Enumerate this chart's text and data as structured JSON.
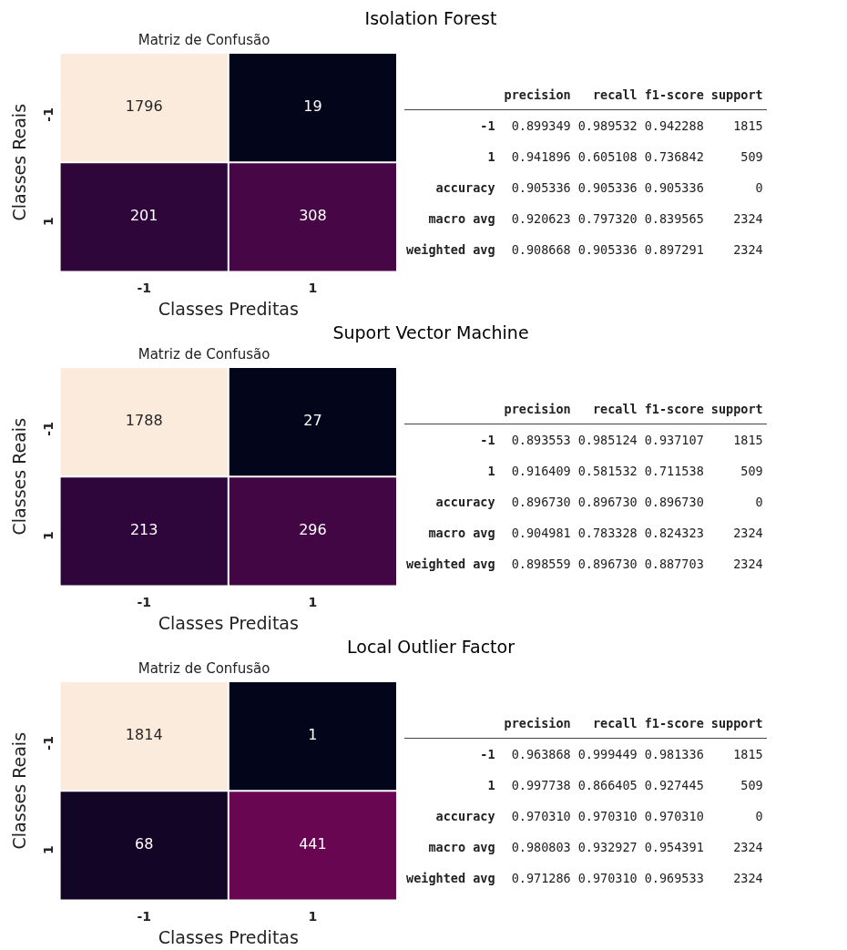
{
  "chart_data": [
    {
      "type": "heatmap",
      "title": "Isolation Forest",
      "subtitle": "Matriz de Confusão",
      "xlabel": "Classes Preditas",
      "ylabel": "Classes Reais",
      "categories": [
        "-1",
        "1"
      ],
      "y_categories": [
        "-1",
        "1"
      ],
      "cells": [
        [
          1796,
          19
        ],
        [
          201,
          308
        ]
      ],
      "data_labels": true
    },
    {
      "type": "other",
      "categories": [
        "precision",
        "recall",
        "f1-score",
        "support"
      ],
      "y_categories": [
        "-1",
        "1",
        "accuracy",
        "macro avg",
        "weighted avg"
      ],
      "cell_labels": [
        [
          "0.899349",
          "0.989532",
          "0.942288",
          "1815"
        ],
        [
          "0.941896",
          "0.605108",
          "0.736842",
          "509"
        ],
        [
          "0.905336",
          "0.905336",
          "0.905336",
          "0"
        ],
        [
          "0.920623",
          "0.797320",
          "0.839565",
          "2324"
        ],
        [
          "0.908668",
          "0.905336",
          "0.897291",
          "2324"
        ]
      ]
    },
    {
      "type": "heatmap",
      "title": "Suport Vector Machine",
      "subtitle": "Matriz de Confusão",
      "xlabel": "Classes Preditas",
      "ylabel": "Classes Reais",
      "categories": [
        "-1",
        "1"
      ],
      "y_categories": [
        "-1",
        "1"
      ],
      "cells": [
        [
          1788,
          27
        ],
        [
          213,
          296
        ]
      ],
      "data_labels": true
    },
    {
      "type": "other",
      "categories": [
        "precision",
        "recall",
        "f1-score",
        "support"
      ],
      "y_categories": [
        "-1",
        "1",
        "accuracy",
        "macro avg",
        "weighted avg"
      ],
      "cell_labels": [
        [
          "0.893553",
          "0.985124",
          "0.937107",
          "1815"
        ],
        [
          "0.916409",
          "0.581532",
          "0.711538",
          "509"
        ],
        [
          "0.896730",
          "0.896730",
          "0.896730",
          "0"
        ],
        [
          "0.904981",
          "0.783328",
          "0.824323",
          "2324"
        ],
        [
          "0.898559",
          "0.896730",
          "0.887703",
          "2324"
        ]
      ]
    },
    {
      "type": "heatmap",
      "title": "Local Outlier Factor",
      "subtitle": "Matriz de Confusão",
      "xlabel": "Classes Preditas",
      "ylabel": "Classes Reais",
      "categories": [
        "-1",
        "1"
      ],
      "y_categories": [
        "-1",
        "1"
      ],
      "cells": [
        [
          1814,
          1
        ],
        [
          68,
          441
        ]
      ],
      "data_labels": true
    },
    {
      "type": "other",
      "categories": [
        "precision",
        "recall",
        "f1-score",
        "support"
      ],
      "y_categories": [
        "-1",
        "1",
        "accuracy",
        "macro avg",
        "weighted avg"
      ],
      "cell_labels": [
        [
          "0.963868",
          "0.999449",
          "0.981336",
          "1815"
        ],
        [
          "0.997738",
          "0.866405",
          "0.927445",
          "509"
        ],
        [
          "0.970310",
          "0.970310",
          "0.970310",
          "0"
        ],
        [
          "0.980803",
          "0.932927",
          "0.954391",
          "2324"
        ],
        [
          "0.971286",
          "0.970310",
          "0.969533",
          "2324"
        ]
      ]
    }
  ]
}
